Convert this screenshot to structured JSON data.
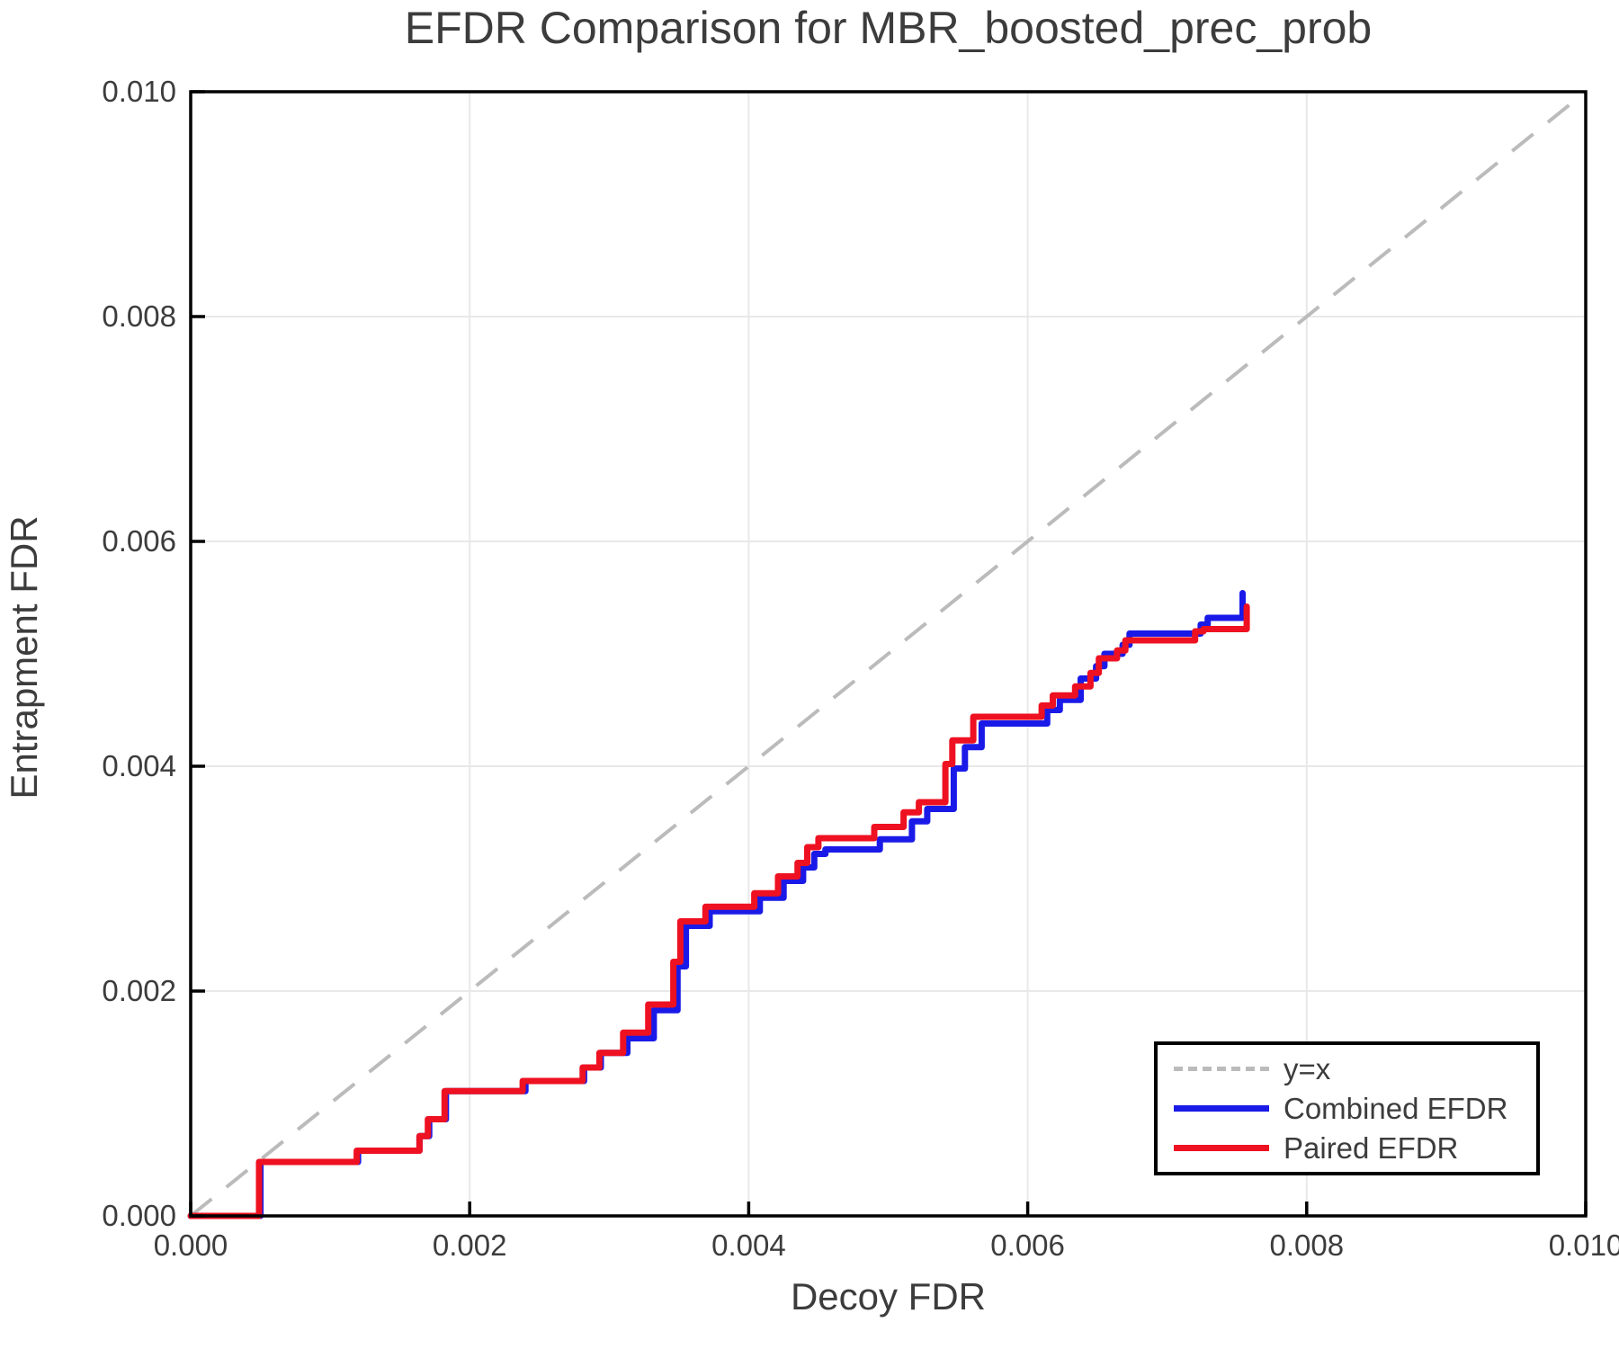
{
  "chart_data": {
    "type": "line",
    "title": "EFDR Comparison for MBR_boosted_prec_prob",
    "xlabel": "Decoy FDR",
    "ylabel": "Entrapment FDR",
    "xlim": [
      0,
      0.01
    ],
    "ylim": [
      0,
      0.01
    ],
    "grid": true,
    "grid_color": "#e8e8e8",
    "frame_color": "#000000",
    "tick_text_color": "#3c3c3c",
    "x_ticks": {
      "values": [
        0,
        0.002,
        0.004,
        0.006,
        0.008,
        0.01
      ],
      "labels": [
        "0.000",
        "0.002",
        "0.004",
        "0.006",
        "0.008",
        "0.010"
      ]
    },
    "y_ticks": {
      "values": [
        0,
        0.002,
        0.004,
        0.006,
        0.008,
        0.01
      ],
      "labels": [
        "0.000",
        "0.002",
        "0.004",
        "0.006",
        "0.008",
        "0.010"
      ]
    },
    "legend_position": "bottom-right",
    "reference_line": {
      "label": "y=x",
      "style": "dashed",
      "color": "#bbbbbb",
      "from": [
        0,
        0
      ],
      "to": [
        0.01,
        0.01
      ]
    },
    "series": [
      {
        "name": "Combined EFDR",
        "color": "#1a1ae8",
        "style": "solid",
        "points": [
          [
            0,
            0
          ],
          [
            0.0005,
            0
          ],
          [
            0.0005,
            0.00048
          ],
          [
            0.0012,
            0.00048
          ],
          [
            0.0012,
            0.00058
          ],
          [
            0.00164,
            0.00058
          ],
          [
            0.00164,
            0.00071
          ],
          [
            0.00171,
            0.00071
          ],
          [
            0.00171,
            0.00086
          ],
          [
            0.00183,
            0.00086
          ],
          [
            0.00183,
            0.00111
          ],
          [
            0.0024,
            0.00111
          ],
          [
            0.0024,
            0.0012
          ],
          [
            0.00282,
            0.0012
          ],
          [
            0.00282,
            0.00132
          ],
          [
            0.00294,
            0.00132
          ],
          [
            0.00294,
            0.00145
          ],
          [
            0.00313,
            0.00145
          ],
          [
            0.00313,
            0.00158
          ],
          [
            0.00332,
            0.00158
          ],
          [
            0.00332,
            0.00183
          ],
          [
            0.00349,
            0.00183
          ],
          [
            0.00349,
            0.00222
          ],
          [
            0.00355,
            0.00222
          ],
          [
            0.00355,
            0.00258
          ],
          [
            0.00372,
            0.00258
          ],
          [
            0.00372,
            0.00271
          ],
          [
            0.00408,
            0.00271
          ],
          [
            0.00408,
            0.00283
          ],
          [
            0.00425,
            0.00283
          ],
          [
            0.00425,
            0.00298
          ],
          [
            0.00439,
            0.00298
          ],
          [
            0.00439,
            0.0031
          ],
          [
            0.00447,
            0.0031
          ],
          [
            0.00447,
            0.00322
          ],
          [
            0.00455,
            0.00322
          ],
          [
            0.00455,
            0.00326
          ],
          [
            0.00494,
            0.00326
          ],
          [
            0.00494,
            0.00335
          ],
          [
            0.00517,
            0.00335
          ],
          [
            0.00517,
            0.00351
          ],
          [
            0.00528,
            0.00351
          ],
          [
            0.00528,
            0.00362
          ],
          [
            0.00547,
            0.00362
          ],
          [
            0.00547,
            0.00398
          ],
          [
            0.00555,
            0.00398
          ],
          [
            0.00555,
            0.00417
          ],
          [
            0.00567,
            0.00417
          ],
          [
            0.00567,
            0.00438
          ],
          [
            0.00614,
            0.00438
          ],
          [
            0.00614,
            0.0045
          ],
          [
            0.00623,
            0.0045
          ],
          [
            0.00623,
            0.00459
          ],
          [
            0.00638,
            0.00459
          ],
          [
            0.00638,
            0.00478
          ],
          [
            0.00649,
            0.00478
          ],
          [
            0.00649,
            0.00489
          ],
          [
            0.00655,
            0.00489
          ],
          [
            0.00655,
            0.005
          ],
          [
            0.00668,
            0.005
          ],
          [
            0.00668,
            0.00508
          ],
          [
            0.00673,
            0.00508
          ],
          [
            0.00673,
            0.00518
          ],
          [
            0.00724,
            0.00518
          ],
          [
            0.00724,
            0.00526
          ],
          [
            0.00729,
            0.00526
          ],
          [
            0.00729,
            0.00532
          ],
          [
            0.00754,
            0.00532
          ],
          [
            0.00754,
            0.00554
          ]
        ]
      },
      {
        "name": "Paired EFDR",
        "color": "#ee1122",
        "style": "solid",
        "points": [
          [
            0,
            0
          ],
          [
            0.00049,
            0
          ],
          [
            0.00049,
            0.00048
          ],
          [
            0.00119,
            0.00048
          ],
          [
            0.00119,
            0.00058
          ],
          [
            0.00164,
            0.00058
          ],
          [
            0.00164,
            0.00071
          ],
          [
            0.0017,
            0.00071
          ],
          [
            0.0017,
            0.00086
          ],
          [
            0.00182,
            0.00086
          ],
          [
            0.00182,
            0.00111
          ],
          [
            0.00238,
            0.00111
          ],
          [
            0.00238,
            0.0012
          ],
          [
            0.00281,
            0.0012
          ],
          [
            0.00281,
            0.00132
          ],
          [
            0.00293,
            0.00132
          ],
          [
            0.00293,
            0.00145
          ],
          [
            0.0031,
            0.00145
          ],
          [
            0.0031,
            0.00163
          ],
          [
            0.00328,
            0.00163
          ],
          [
            0.00328,
            0.00188
          ],
          [
            0.00346,
            0.00188
          ],
          [
            0.00346,
            0.00226
          ],
          [
            0.00351,
            0.00226
          ],
          [
            0.00351,
            0.00262
          ],
          [
            0.00369,
            0.00262
          ],
          [
            0.00369,
            0.00275
          ],
          [
            0.00404,
            0.00275
          ],
          [
            0.00404,
            0.00287
          ],
          [
            0.00421,
            0.00287
          ],
          [
            0.00421,
            0.00302
          ],
          [
            0.00435,
            0.00302
          ],
          [
            0.00435,
            0.00314
          ],
          [
            0.00442,
            0.00314
          ],
          [
            0.00442,
            0.00328
          ],
          [
            0.0045,
            0.00328
          ],
          [
            0.0045,
            0.00336
          ],
          [
            0.0049,
            0.00336
          ],
          [
            0.0049,
            0.00346
          ],
          [
            0.00511,
            0.00346
          ],
          [
            0.00511,
            0.00359
          ],
          [
            0.00522,
            0.00359
          ],
          [
            0.00522,
            0.00368
          ],
          [
            0.00541,
            0.00368
          ],
          [
            0.00541,
            0.00402
          ],
          [
            0.00546,
            0.00402
          ],
          [
            0.00546,
            0.00423
          ],
          [
            0.00561,
            0.00423
          ],
          [
            0.00561,
            0.00444
          ],
          [
            0.0061,
            0.00444
          ],
          [
            0.0061,
            0.00454
          ],
          [
            0.00618,
            0.00454
          ],
          [
            0.00618,
            0.00463
          ],
          [
            0.00634,
            0.00463
          ],
          [
            0.00634,
            0.00471
          ],
          [
            0.00645,
            0.00471
          ],
          [
            0.00645,
            0.00483
          ],
          [
            0.00651,
            0.00483
          ],
          [
            0.00651,
            0.00496
          ],
          [
            0.00664,
            0.00496
          ],
          [
            0.00664,
            0.00503
          ],
          [
            0.0067,
            0.00503
          ],
          [
            0.0067,
            0.00512
          ],
          [
            0.0072,
            0.00512
          ],
          [
            0.0072,
            0.0052
          ],
          [
            0.00726,
            0.0052
          ],
          [
            0.00726,
            0.00522
          ],
          [
            0.00757,
            0.00522
          ],
          [
            0.00757,
            0.00542
          ]
        ]
      }
    ],
    "legend": {
      "entries": [
        {
          "label": "y=x"
        },
        {
          "label": "Combined EFDR"
        },
        {
          "label": "Paired EFDR"
        }
      ]
    }
  }
}
